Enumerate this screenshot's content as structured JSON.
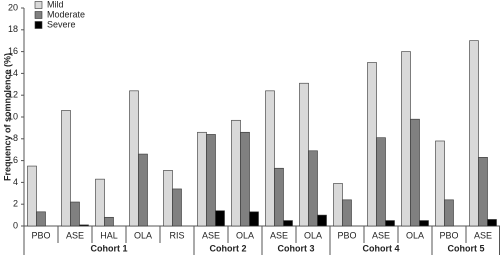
{
  "chart_data": {
    "type": "bar",
    "y_label": "Frequency of somnolence (%)",
    "groups": [
      {
        "name": "Cohort 1",
        "categories": [
          "PBO",
          "ASE",
          "HAL",
          "OLA",
          "RIS"
        ]
      },
      {
        "name": "Cohort 2",
        "categories": [
          "ASE",
          "OLA"
        ]
      },
      {
        "name": "Cohort 3",
        "categories": [
          "ASE",
          "OLA"
        ]
      },
      {
        "name": "Cohort 4",
        "categories": [
          "PBO",
          "ASE",
          "OLA"
        ]
      },
      {
        "name": "Cohort 5",
        "categories": [
          "PBO",
          "ASE"
        ]
      }
    ],
    "series": [
      {
        "name": "Mild",
        "color": "#d9d9d9",
        "values": [
          5.5,
          10.6,
          4.3,
          12.4,
          5.1,
          8.6,
          9.7,
          12.4,
          13.1,
          3.9,
          15.0,
          16.0,
          7.8,
          17.0
        ]
      },
      {
        "name": "Moderate",
        "color": "#808080",
        "values": [
          1.3,
          2.2,
          0.8,
          6.6,
          3.4,
          8.4,
          8.6,
          5.3,
          6.9,
          2.4,
          8.1,
          9.8,
          2.4,
          6.3
        ]
      },
      {
        "name": "Severe",
        "color": "#000000",
        "values": [
          0,
          0.1,
          0,
          0,
          0,
          1.4,
          1.3,
          0.5,
          1.0,
          0,
          0.5,
          0.5,
          0,
          0.6
        ]
      }
    ],
    "ylim": [
      0,
      20
    ],
    "yticks": [
      0,
      2,
      4,
      6,
      8,
      10,
      12,
      14,
      16,
      18,
      20
    ],
    "legend": "top-left"
  }
}
